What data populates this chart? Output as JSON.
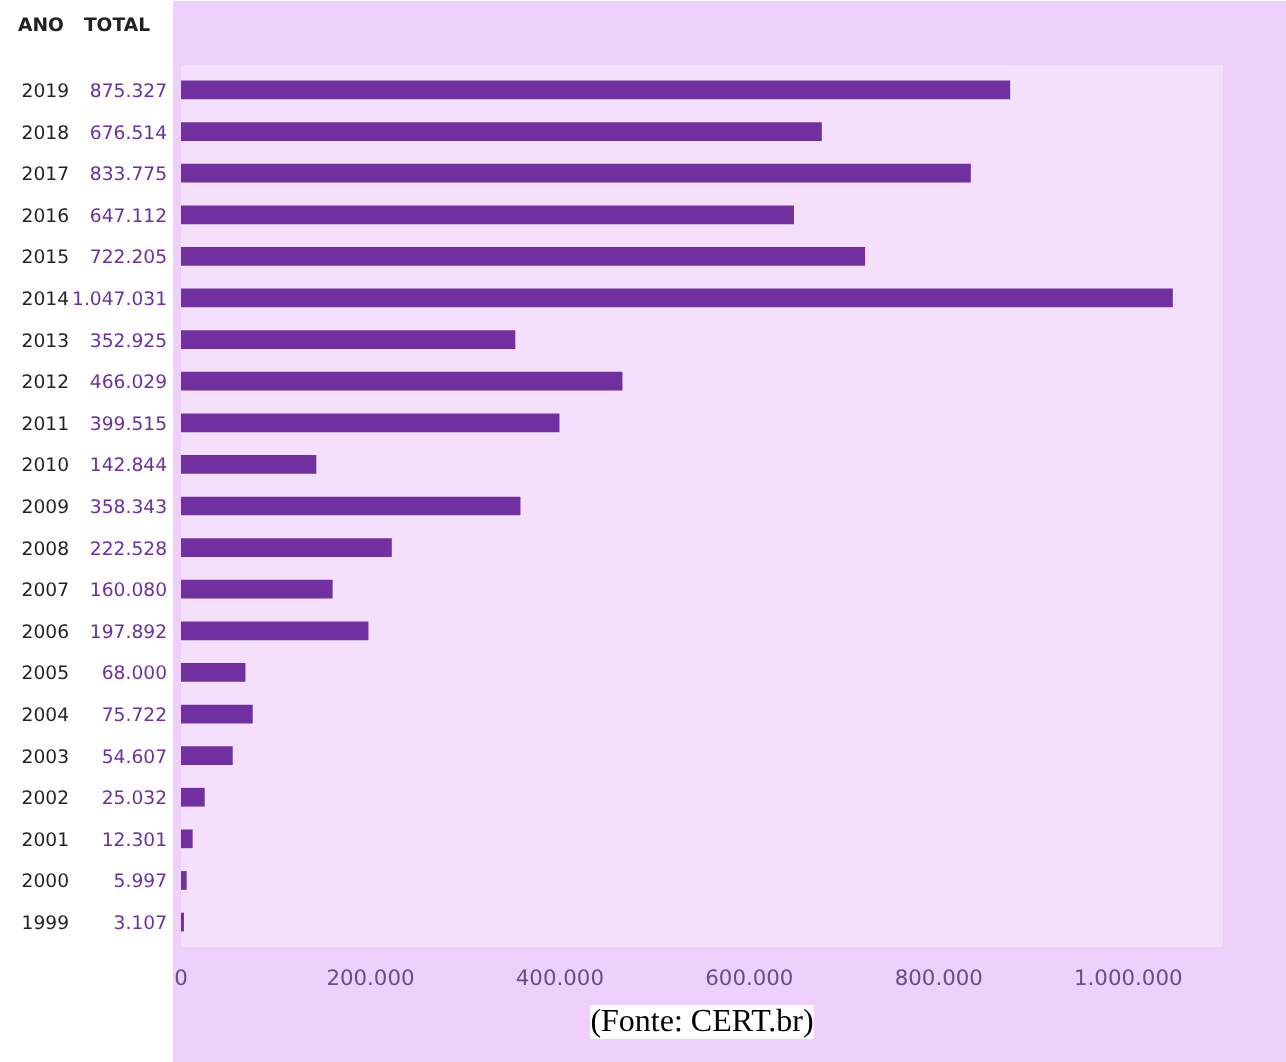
{
  "chart_data": {
    "type": "bar",
    "orientation": "horizontal",
    "categories": [
      "2019",
      "2018",
      "2017",
      "2016",
      "2015",
      "2014",
      "2013",
      "2012",
      "2011",
      "2010",
      "2009",
      "2008",
      "2007",
      "2006",
      "2005",
      "2004",
      "2003",
      "2002",
      "2001",
      "2000",
      "1999"
    ],
    "values": [
      875327,
      676514,
      833775,
      647112,
      722205,
      1047031,
      352925,
      466029,
      399515,
      142844,
      358343,
      222528,
      160080,
      197892,
      68000,
      75722,
      54607,
      25032,
      12301,
      5997,
      3107
    ],
    "value_labels": [
      "875.327",
      "676.514",
      "833.775",
      "647.112",
      "722.205",
      "1.047.031",
      "352.925",
      "466.029",
      "399.515",
      "142.844",
      "358.343",
      "222.528",
      "160.080",
      "197.892",
      "68.000",
      "75.722",
      "54.607",
      "25.032",
      "12.301",
      "5.997",
      "3.107"
    ],
    "color": "#7030a0",
    "xlim": [
      0,
      1100000
    ],
    "xticks": [
      0,
      {
        "value": 200000,
        "label": "200.000"
      },
      {
        "value": 400000,
        "label": "400.000"
      },
      {
        "value": 600000,
        "label": "600.000"
      },
      {
        "value": 800000,
        "label": "800.000"
      },
      {
        "value": 1000000,
        "label": "1.000.000"
      }
    ],
    "grid": false,
    "annotations": [
      "ANO",
      "TOTAL",
      "(Fonte: CERT.br)"
    ]
  }
}
